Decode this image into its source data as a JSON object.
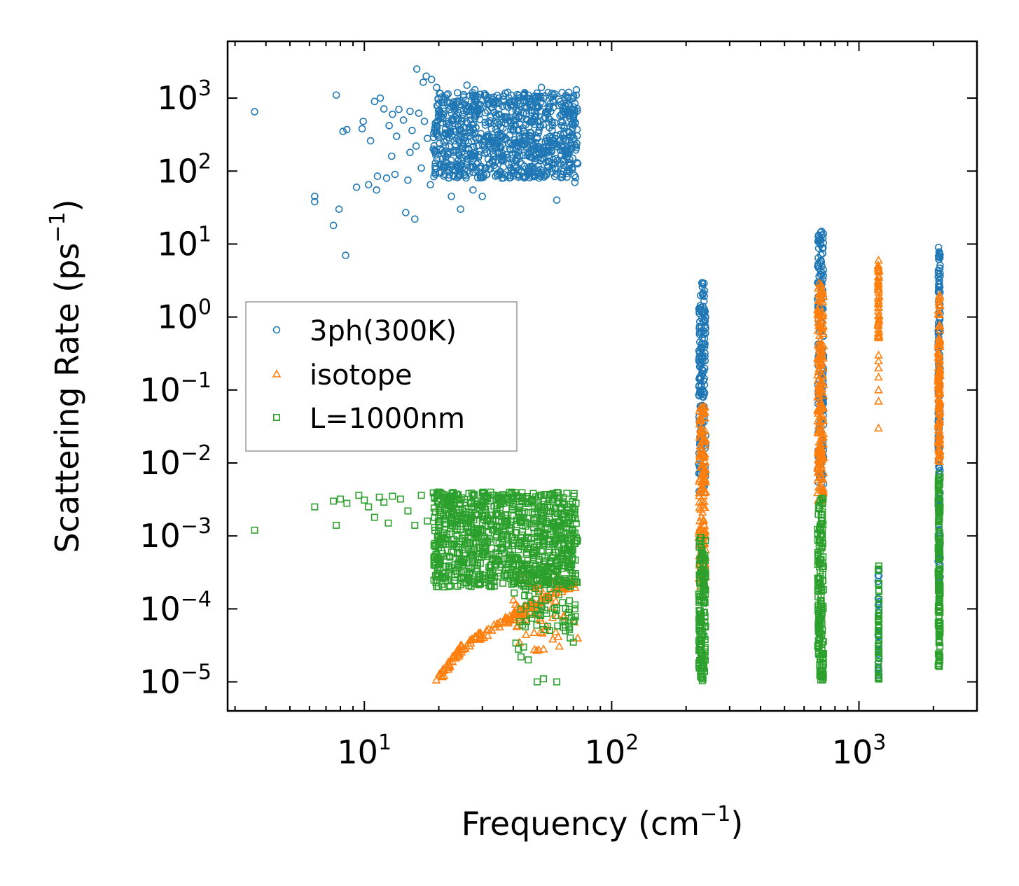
{
  "chart_data": {
    "type": "scatter",
    "title": "",
    "xscale": "log",
    "yscale": "log",
    "xlim": [
      2.8,
      3000
    ],
    "ylim": [
      4e-06,
      6000
    ],
    "xlabel": {
      "main": "Frequency (cm",
      "sup": "−1",
      "tail": ")"
    },
    "ylabel": {
      "main": "Scattering Rate (ps",
      "sup": "−1",
      "tail": ")"
    },
    "xticks": [
      {
        "value": 10,
        "base": "10",
        "exp": "1"
      },
      {
        "value": 100,
        "base": "10",
        "exp": "2"
      },
      {
        "value": 1000,
        "base": "10",
        "exp": "3"
      }
    ],
    "yticks": [
      {
        "value": 1e-05,
        "base": "10",
        "exp": "−5"
      },
      {
        "value": 0.0001,
        "base": "10",
        "exp": "−4"
      },
      {
        "value": 0.001,
        "base": "10",
        "exp": "−3"
      },
      {
        "value": 0.01,
        "base": "10",
        "exp": "−2"
      },
      {
        "value": 0.1,
        "base": "10",
        "exp": "−1"
      },
      {
        "value": 1,
        "base": "10",
        "exp": "0"
      },
      {
        "value": 10,
        "base": "10",
        "exp": "1"
      },
      {
        "value": 100,
        "base": "10",
        "exp": "2"
      },
      {
        "value": 1000,
        "base": "10",
        "exp": "3"
      }
    ],
    "legend": {
      "position": "center-left"
    },
    "series": [
      {
        "name": "3ph(300K)",
        "marker": "circle",
        "color": "#1f77b4",
        "points": [
          [
            3.6,
            650
          ],
          [
            6.3,
            45
          ],
          [
            6.3,
            38
          ],
          [
            7.5,
            18
          ],
          [
            7.7,
            1100
          ],
          [
            7.9,
            30
          ],
          [
            8.2,
            350
          ],
          [
            8.5,
            370
          ],
          [
            8.4,
            7
          ],
          [
            9.3,
            60
          ],
          [
            9.8,
            380
          ],
          [
            9.9,
            480
          ],
          [
            10.4,
            65
          ],
          [
            10.6,
            260
          ],
          [
            11.0,
            900
          ],
          [
            11.2,
            55
          ],
          [
            11.3,
            85
          ],
          [
            11.6,
            1000
          ],
          [
            12.0,
            710
          ],
          [
            12.3,
            80
          ],
          [
            12.6,
            420
          ],
          [
            12.9,
            160
          ],
          [
            13.0,
            600
          ],
          [
            13.3,
            90
          ],
          [
            13.5,
            300
          ],
          [
            13.8,
            700
          ],
          [
            14.4,
            500
          ],
          [
            14.7,
            27
          ],
          [
            15.0,
            75
          ],
          [
            15.3,
            180
          ],
          [
            15.3,
            660
          ],
          [
            15.6,
            360
          ],
          [
            16.0,
            22
          ],
          [
            16.2,
            220
          ],
          [
            16.3,
            2500
          ],
          [
            16.6,
            620
          ],
          [
            17.0,
            110
          ],
          [
            17.3,
            1650
          ],
          [
            17.5,
            480
          ],
          [
            17.8,
            2000
          ],
          [
            18.0,
            280
          ],
          [
            18.5,
            65
          ],
          [
            18.7,
            1800
          ],
          [
            19.0,
            200
          ],
          [
            19.5,
            320
          ],
          [
            19.6,
            1400
          ],
          [
            20.0,
            550
          ],
          [
            20.5,
            120
          ],
          [
            21.0,
            250
          ],
          [
            21.5,
            1100
          ],
          [
            22.0,
            420
          ],
          [
            22.5,
            45
          ],
          [
            23.0,
            180
          ],
          [
            23.5,
            900
          ],
          [
            24.0,
            140
          ],
          [
            24.5,
            30
          ],
          [
            25.0,
            600
          ],
          [
            25.5,
            90
          ],
          [
            26.0,
            1500
          ],
          [
            27.0,
            350
          ],
          [
            27.5,
            55
          ],
          [
            28.0,
            1300
          ],
          [
            28.5,
            220
          ],
          [
            29.5,
            700
          ],
          [
            30.0,
            45
          ],
          [
            31.0,
            1100
          ],
          [
            32.0,
            300
          ],
          [
            33.5,
            120
          ],
          [
            35.0,
            1000
          ],
          [
            36.0,
            80
          ],
          [
            38.0,
            1200
          ],
          [
            40.0,
            200
          ],
          [
            42.0,
            1000
          ],
          [
            44.0,
            350
          ],
          [
            46.0,
            1100
          ],
          [
            48.0,
            150
          ],
          [
            50.0,
            800
          ],
          [
            52.0,
            1400
          ],
          [
            55.0,
            100
          ],
          [
            58.0,
            1100
          ],
          [
            60.0,
            40
          ],
          [
            62.0,
            900
          ],
          [
            64.0,
            120
          ],
          [
            67.0,
            1200
          ],
          [
            70.0,
            600
          ],
          [
            71.0,
            70
          ],
          [
            72.0,
            1300
          ],
          [
            72.5,
            130
          ]
        ],
        "clusters": [
          {
            "x": [
              19,
              73
            ],
            "y": [
              80,
              1200
            ],
            "count": 900
          },
          {
            "x": [
              225,
              240
            ],
            "y": [
              0.004,
              3.0
            ],
            "count": 170
          },
          {
            "x": [
              680,
              720
            ],
            "y": [
              0.005,
              15
            ],
            "count": 170
          },
          {
            "x": [
              1195,
              1205
            ],
            "y": [
              1e-05,
              0.0005
            ],
            "count": 35
          },
          {
            "x": [
              2090,
              2130
            ],
            "y": [
              0.00015,
              10
            ],
            "count": 170
          }
        ]
      },
      {
        "name": "isotope",
        "marker": "triangle",
        "color": "#ff7f0e",
        "points": [
          [
            1200,
            6.0
          ],
          [
            1200,
            0.3
          ],
          [
            1200,
            0.2
          ],
          [
            1200,
            0.1
          ],
          [
            1200,
            0.07
          ],
          [
            1200,
            0.03
          ],
          [
            1200,
            0.15
          ],
          [
            1200,
            0.25
          ]
        ],
        "clusters": [
          {
            "curve": [
              [
                19.5,
                1e-05
              ],
              [
                25,
                3e-05
              ],
              [
                35,
                6e-05
              ],
              [
                45,
                0.0001
              ],
              [
                55,
                0.00015
              ],
              [
                72,
                0.00025
              ]
            ],
            "count": 150
          },
          {
            "x": [
              40,
              73
            ],
            "y": [
              2.5e-05,
              0.0003
            ],
            "count": 60
          },
          {
            "x": [
              225,
              240
            ],
            "y": [
              0.0002,
              0.06
            ],
            "count": 160
          },
          {
            "x": [
              680,
              720
            ],
            "y": [
              0.003,
              3.0
            ],
            "count": 190
          },
          {
            "x": [
              1195,
              1205
            ],
            "y": [
              0.5,
              5.5
            ],
            "count": 45
          },
          {
            "x": [
              2090,
              2130
            ],
            "y": [
              0.01,
              2.0
            ],
            "count": 120
          }
        ]
      },
      {
        "name": "L=1000nm",
        "marker": "square",
        "color": "#2ca02c",
        "points": [
          [
            3.6,
            0.0012
          ],
          [
            6.3,
            0.0025
          ],
          [
            7.5,
            0.003
          ],
          [
            7.7,
            0.0014
          ],
          [
            8.0,
            0.0032
          ],
          [
            8.5,
            0.0028
          ],
          [
            9.5,
            0.0036
          ],
          [
            10.0,
            0.0031
          ],
          [
            10.4,
            0.0025
          ],
          [
            11.0,
            0.0018
          ],
          [
            11.5,
            0.0034
          ],
          [
            12.0,
            0.0029
          ],
          [
            12.5,
            0.0015
          ],
          [
            13.0,
            0.0035
          ],
          [
            14.0,
            0.0032
          ],
          [
            15.0,
            0.0022
          ],
          [
            16.0,
            0.0014
          ],
          [
            17.0,
            0.0036
          ],
          [
            18.0,
            0.0016
          ],
          [
            19.0,
            0.0039
          ],
          [
            20.0,
            0.0027
          ],
          [
            21.0,
            0.0011
          ],
          [
            22.0,
            0.0033
          ],
          [
            22.5,
            0.0006
          ],
          [
            23.0,
            0.0009
          ],
          [
            24.0,
            0.0007
          ],
          [
            25.0,
            0.0004
          ],
          [
            26.0,
            0.0008
          ],
          [
            27.5,
            0.00045
          ],
          [
            29.0,
            0.0007
          ],
          [
            30.0,
            0.0006
          ],
          [
            41.0,
            3.4e-05
          ],
          [
            42.0,
            2.8e-05
          ],
          [
            43.0,
            2.2e-05
          ],
          [
            44.0,
            3e-05
          ],
          [
            46.0,
            2e-05
          ],
          [
            50.0,
            1e-05
          ],
          [
            53.0,
            1.1e-05
          ],
          [
            60.0,
            1e-05
          ],
          [
            65.0,
            5e-05
          ],
          [
            68.0,
            4e-05
          ],
          [
            70.0,
            3.5e-05
          ],
          [
            70.5,
            7e-05
          ],
          [
            71.0,
            0.0001
          ]
        ],
        "clusters": [
          {
            "x": [
              19,
              73
            ],
            "y": [
              0.0002,
              0.004
            ],
            "count": 950
          },
          {
            "x": [
              40,
              72
            ],
            "y": [
              5e-05,
              0.0004
            ],
            "count": 80
          },
          {
            "x": [
              225,
              240
            ],
            "y": [
              1e-05,
              0.001
            ],
            "count": 150
          },
          {
            "x": [
              680,
              720
            ],
            "y": [
              1e-05,
              0.0035
            ],
            "count": 170
          },
          {
            "x": [
              1195,
              1205
            ],
            "y": [
              1e-05,
              0.0004
            ],
            "count": 45
          },
          {
            "x": [
              2090,
              2130
            ],
            "y": [
              1.5e-05,
              0.007
            ],
            "count": 160
          }
        ]
      }
    ]
  }
}
